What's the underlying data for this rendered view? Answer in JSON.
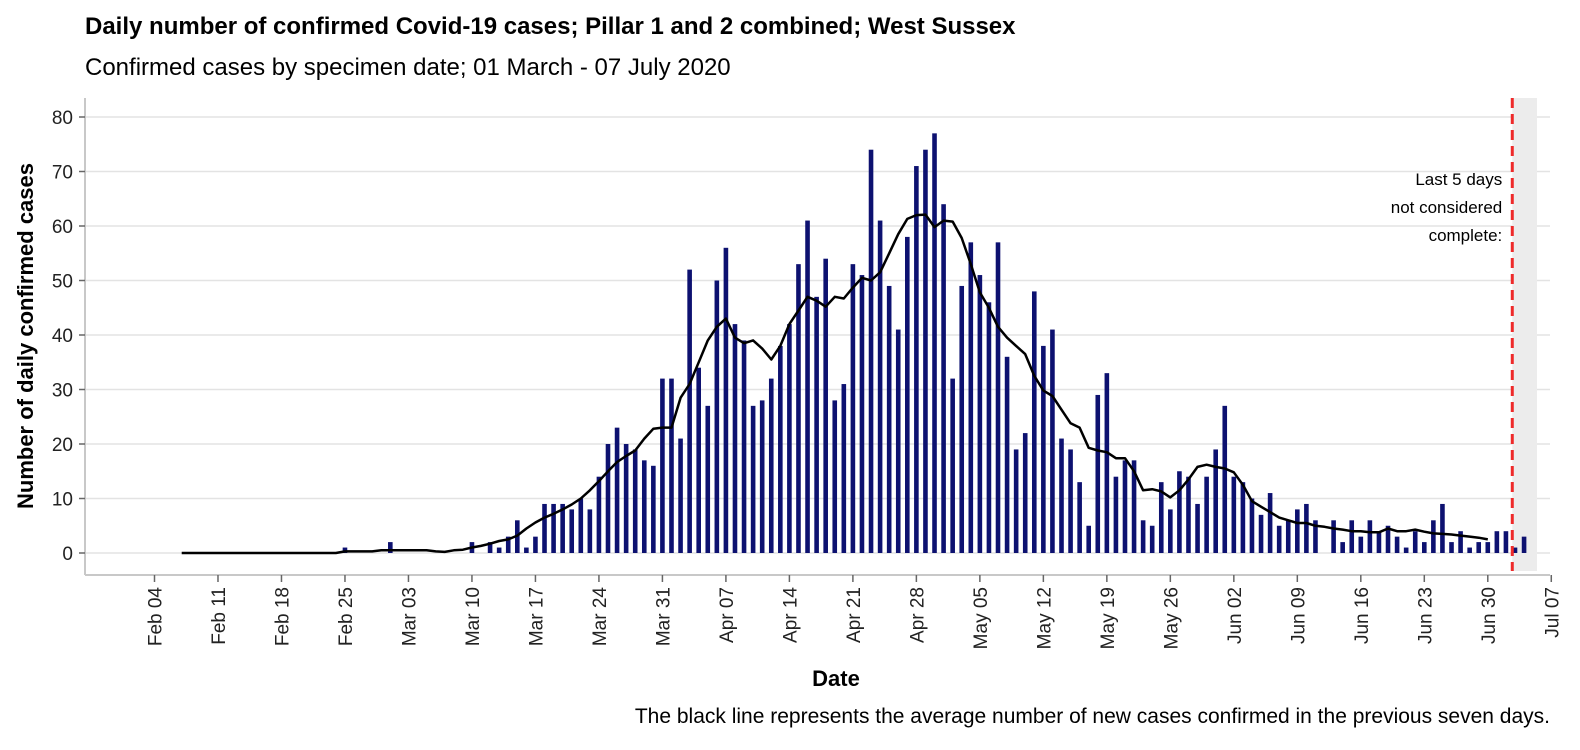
{
  "chart_data": {
    "type": "bar",
    "title": "Daily number of confirmed Covid-19 cases; Pillar 1 and 2 combined; West Sussex",
    "subtitle": "Confirmed cases by specimen date; 01 March - 07 July 2020",
    "xlabel": "Date",
    "ylabel": "Number of daily confirmed cases",
    "caption": "The black line represents the average number of new cases confirmed in the previous seven days.",
    "annotation": [
      "Last 5 days",
      "not considered",
      "complete:"
    ],
    "start_date": "2020-02-01",
    "ylim": [
      0,
      80
    ],
    "yticks": [
      0,
      10,
      20,
      30,
      40,
      50,
      60,
      70,
      80
    ],
    "xticks": [
      "Feb 04",
      "Feb 11",
      "Feb 18",
      "Feb 25",
      "Mar 03",
      "Mar 10",
      "Mar 17",
      "Mar 24",
      "Mar 31",
      "Apr 07",
      "Apr 14",
      "Apr 21",
      "Apr 28",
      "May 05",
      "May 12",
      "May 19",
      "May 26",
      "Jun 02",
      "Jun 09",
      "Jun 16",
      "Jun 23",
      "Jun 30",
      "Jul 07"
    ],
    "incomplete_from": "2020-07-03",
    "bar_color": "#0d1170",
    "line_color": "#000000",
    "cutoff_color": "#ee2a2a",
    "values": [
      0,
      0,
      0,
      0,
      0,
      0,
      0,
      0,
      0,
      0,
      0,
      0,
      0,
      0,
      0,
      0,
      0,
      0,
      0,
      0,
      0,
      0,
      0,
      0,
      1,
      0,
      0,
      0,
      0,
      2,
      0,
      0,
      0,
      0,
      0,
      0,
      0,
      0,
      2,
      0,
      2,
      1,
      3,
      6,
      1,
      3,
      9,
      9,
      9,
      8,
      10,
      8,
      14,
      20,
      23,
      20,
      19,
      17,
      16,
      32,
      32,
      21,
      52,
      34,
      27,
      50,
      56,
      42,
      39,
      27,
      28,
      32,
      38,
      42,
      53,
      61,
      47,
      54,
      28,
      31,
      53,
      51,
      74,
      61,
      49,
      41,
      58,
      71,
      74,
      77,
      64,
      32,
      49,
      57,
      51,
      46,
      57,
      36,
      19,
      22,
      48,
      38,
      41,
      21,
      19,
      13,
      5,
      29,
      33,
      14,
      17,
      17,
      6,
      5,
      13,
      8,
      15,
      14,
      9,
      14,
      19,
      27,
      14,
      13,
      10,
      7,
      11,
      5,
      6,
      8,
      9,
      6,
      0,
      6,
      2,
      6,
      3,
      6,
      4,
      5,
      3,
      1,
      4,
      2,
      6,
      9,
      2,
      4,
      1,
      2,
      2,
      4,
      4,
      1,
      3,
      0
    ],
    "average": [
      0,
      0,
      0,
      0,
      0,
      0,
      0,
      0,
      0,
      0,
      0,
      0,
      0,
      0,
      0,
      0,
      0,
      0,
      0,
      0,
      0,
      0,
      0,
      0,
      0.3,
      0.3,
      0.3,
      0.3,
      0.5,
      0.5,
      0.5,
      0.5,
      0.5,
      0.5,
      0.3,
      0.2,
      0.5,
      0.6,
      1,
      1.3,
      1.7,
      2.2,
      2.5,
      3.2,
      4.5,
      5.6,
      6.5,
      7.2,
      8,
      8.9,
      10,
      11.5,
      13.2,
      15,
      16.7,
      17.8,
      18.8,
      21,
      22.8,
      23,
      23,
      28.5,
      31,
      35,
      39,
      41.5,
      43,
      39.5,
      38.5,
      39,
      37.5,
      35.5,
      38,
      42,
      44.5,
      47,
      46.3,
      45.2,
      47,
      46.7,
      48.7,
      50.5,
      50,
      51.5,
      55,
      58.5,
      61.3,
      62,
      62.1,
      59.8,
      61,
      60.8,
      57.8,
      53,
      47.8,
      45,
      41.5,
      39.5,
      38,
      36.5,
      32.5,
      29.8,
      28.8,
      26.3,
      23.8,
      23,
      19.3,
      18.8,
      18.5,
      17.4,
      17.4,
      15,
      11.5,
      11.7,
      11.3,
      10.2,
      11.5,
      13.5,
      15.8,
      16.2,
      15.8,
      15.5,
      14.8,
      12.5,
      9.5,
      8.5,
      7.5,
      6.5,
      6,
      5.5,
      5.5,
      5,
      4.8,
      4.5,
      4.3,
      4,
      4,
      3.8,
      3.8,
      4.5,
      4,
      4,
      4.3,
      3.9,
      3.6,
      3.5,
      3.4,
      3.2,
      3,
      2.8,
      2.5
    ]
  }
}
